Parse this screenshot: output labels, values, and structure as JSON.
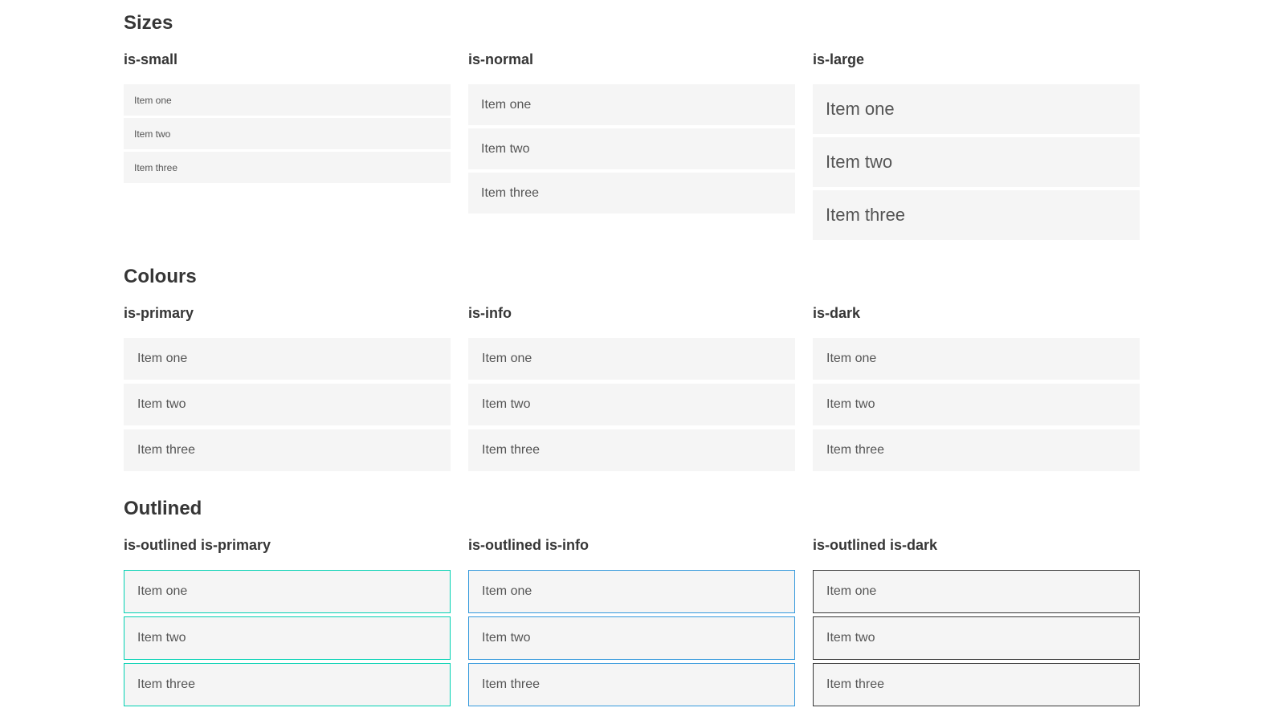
{
  "page": {
    "background": "#ffffff"
  },
  "colors": {
    "primary": "#00d1b2",
    "info": "#3298dc",
    "dark": "#363636",
    "item-bg": "#f5f5f5",
    "item-text": "#555555",
    "heading-text": "#363636",
    "light-text": "#ffffff",
    "dark-item-text": "#f5f5f5"
  },
  "sections": [
    {
      "title": "Sizes",
      "columns": [
        {
          "heading": "is-small",
          "items": [
            "Item one",
            "Item two",
            "Item three"
          ]
        },
        {
          "heading": "is-normal",
          "items": [
            "Item one",
            "Item two",
            "Item three"
          ]
        },
        {
          "heading": "is-large",
          "items": [
            "Item one",
            "Item two",
            "Item three"
          ]
        }
      ]
    },
    {
      "title": "Colours",
      "columns": [
        {
          "heading": "is-primary",
          "items": [
            "Item one",
            "Item two",
            "Item three"
          ]
        },
        {
          "heading": "is-info",
          "items": [
            "Item one",
            "Item two",
            "Item three"
          ]
        },
        {
          "heading": "is-dark",
          "items": [
            "Item one",
            "Item two",
            "Item three"
          ]
        }
      ]
    },
    {
      "title": "Outlined",
      "columns": [
        {
          "heading": "is-outlined is-primary",
          "items": [
            "Item one",
            "Item two",
            "Item three"
          ]
        },
        {
          "heading": "is-outlined is-info",
          "items": [
            "Item one",
            "Item two",
            "Item three"
          ]
        },
        {
          "heading": "is-outlined is-dark",
          "items": [
            "Item one",
            "Item two",
            "Item three"
          ]
        }
      ]
    }
  ]
}
